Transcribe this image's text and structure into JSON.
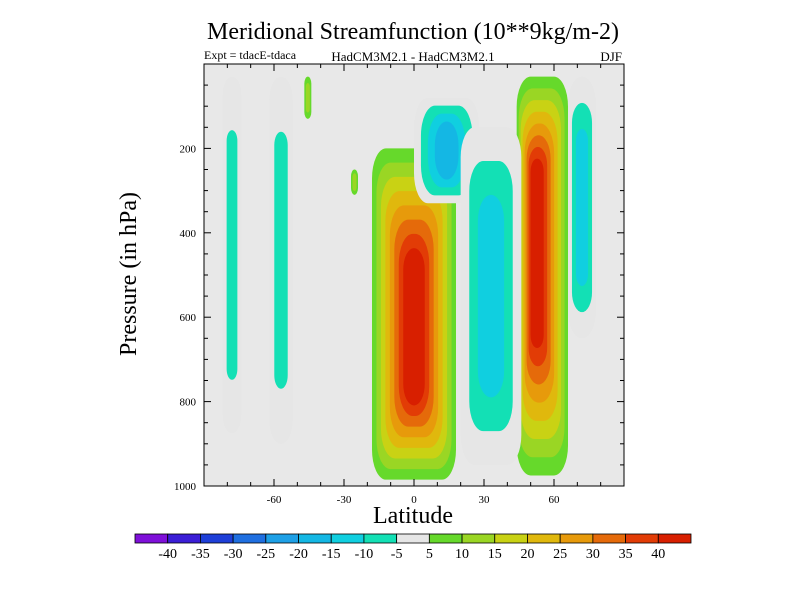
{
  "chart_data": {
    "type": "heatmap",
    "title": "Meridional Streamfunction (10**9kg/m-2)",
    "subtitle_left": "Expt = tdacE-tdaca",
    "subtitle_center": "HadCM3M2.1 - HadCM3M2.1",
    "subtitle_right": "DJF",
    "xlabel": "Latitude",
    "ylabel": "Pressure (in hPa)",
    "xlim": [
      -90,
      90
    ],
    "ylim": [
      1000,
      0
    ],
    "x_ticks": [
      -60,
      -30,
      0,
      30,
      60
    ],
    "y_ticks": [
      200,
      400,
      600,
      800,
      1000
    ],
    "background_color": "#e8e8e8",
    "colorbar": {
      "boundaries": [
        "-40",
        "-35",
        "-30",
        "-25",
        "-20",
        "-15",
        "-10",
        "-5",
        "5",
        "10",
        "15",
        "20",
        "25",
        "30",
        "35",
        "40"
      ],
      "colors": [
        "#7f10d9",
        "#3b1ed6",
        "#1e3fd8",
        "#1f6fe0",
        "#1ea0e6",
        "#14b7e4",
        "#10cfe0",
        "#13e0b5",
        "#e6e6e6",
        "#66d92b",
        "#9ad624",
        "#c9d214",
        "#e0b80d",
        "#e79a0b",
        "#e56a0a",
        "#e23c06",
        "#d81f00"
      ]
    },
    "field_levels": [
      {
        "name": "tropical-cell",
        "x_range": [
          -18,
          18
        ],
        "p_range": [
          200,
          985
        ],
        "peak_value": 40,
        "peak_x": 0,
        "peak_p": 650
      },
      {
        "name": "midlat-cell",
        "x_range": [
          44,
          66
        ],
        "p_range": [
          30,
          975
        ],
        "peak_value": 40,
        "peak_x": 52,
        "peak_p": 400
      },
      {
        "name": "south-negative-band",
        "x_range": [
          -82,
          -74
        ],
        "p_range": [
          30,
          875
        ],
        "peak_value": -10
      },
      {
        "name": "south-negative-band-2",
        "x_range": [
          -62,
          -52
        ],
        "p_range": [
          30,
          900
        ],
        "peak_value": -10
      },
      {
        "name": "upper-negative-lobe",
        "x_range": [
          0,
          28
        ],
        "p_range": [
          80,
          330
        ],
        "peak_value": -20
      },
      {
        "name": "east-negative-band",
        "x_range": [
          20,
          46
        ],
        "p_range": [
          150,
          950
        ],
        "peak_value": -15
      },
      {
        "name": "northern-negative-band",
        "x_range": [
          66,
          78
        ],
        "p_range": [
          30,
          650
        ],
        "peak_value": -15
      },
      {
        "name": "small-positive-blob-1",
        "x_range": [
          -47,
          -44
        ],
        "p_range": [
          30,
          130
        ],
        "peak_value": 10
      },
      {
        "name": "small-positive-blob-2",
        "x_range": [
          -27,
          -24
        ],
        "p_range": [
          250,
          310
        ],
        "peak_value": 10
      }
    ]
  }
}
